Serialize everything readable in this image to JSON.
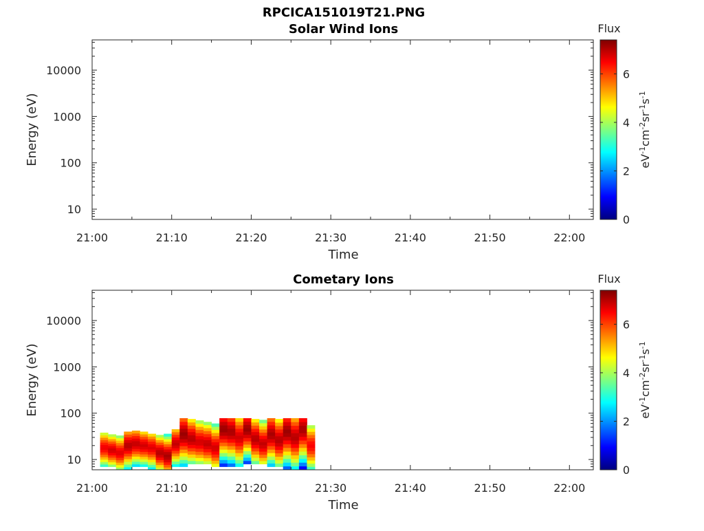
{
  "figure_title": "RPCICA151019T21.PNG",
  "colors": {
    "jet": [
      "#00007f",
      "#0000ff",
      "#007fff",
      "#00ffff",
      "#7fff7f",
      "#ffff00",
      "#ff7f00",
      "#ff0000",
      "#7f0000"
    ]
  },
  "chart_data": [
    {
      "type": "heatmap",
      "title": "Solar Wind Ions",
      "xlabel": "Time",
      "ylabel": "Energy (eV)",
      "yscale": "log",
      "xlim": [
        "21:00",
        "22:03"
      ],
      "ylim": [
        6,
        45000
      ],
      "x_ticks": [
        "21:00",
        "21:10",
        "21:20",
        "21:30",
        "21:40",
        "21:50",
        "22:00"
      ],
      "y_ticks": [
        "10",
        "100",
        "1000",
        "10000"
      ],
      "colorbar": {
        "title": "Flux",
        "label": "eV-1cm-2sr-1s-1",
        "range": [
          0,
          7.4
        ],
        "ticks": [
          "0",
          "2",
          "4",
          "6"
        ]
      },
      "data": []
    },
    {
      "type": "heatmap",
      "title": "Cometary Ions",
      "xlabel": "Time",
      "ylabel": "Energy (eV)",
      "yscale": "log",
      "xlim": [
        "21:00",
        "22:03"
      ],
      "ylim": [
        6,
        45000
      ],
      "x_ticks": [
        "21:00",
        "21:10",
        "21:20",
        "21:30",
        "21:40",
        "21:50",
        "22:00"
      ],
      "y_ticks": [
        "10",
        "100",
        "1000",
        "10000"
      ],
      "colorbar": {
        "title": "Flux",
        "label": "eV-1cm-2sr-1s-1",
        "range": [
          0,
          7.4
        ],
        "ticks": [
          "0",
          "2",
          "4",
          "6"
        ]
      },
      "data": [
        {
          "t": "21:01",
          "emin": 7,
          "emax": 38,
          "peak": 18,
          "flux": 6.6
        },
        {
          "t": "21:02",
          "emin": 7,
          "emax": 35,
          "peak": 16,
          "flux": 6.8
        },
        {
          "t": "21:03",
          "emin": 6,
          "emax": 33,
          "peak": 14,
          "flux": 6.7
        },
        {
          "t": "21:04",
          "emin": 6,
          "emax": 40,
          "peak": 20,
          "flux": 7.0
        },
        {
          "t": "21:05",
          "emin": 7,
          "emax": 42,
          "peak": 22,
          "flux": 6.9
        },
        {
          "t": "21:06",
          "emin": 7,
          "emax": 40,
          "peak": 20,
          "flux": 6.8
        },
        {
          "t": "21:07",
          "emin": 6,
          "emax": 36,
          "peak": 18,
          "flux": 6.7
        },
        {
          "t": "21:08",
          "emin": 6,
          "emax": 34,
          "peak": 14,
          "flux": 7.0
        },
        {
          "t": "21:09",
          "emin": 6,
          "emax": 36,
          "peak": 12,
          "flux": 7.1
        },
        {
          "t": "21:10",
          "emin": 7,
          "emax": 45,
          "peak": 22,
          "flux": 6.9
        },
        {
          "t": "21:11",
          "emin": 7,
          "emax": 78,
          "peak": 35,
          "flux": 7.2
        },
        {
          "t": "21:12",
          "emin": 8,
          "emax": 75,
          "peak": 28,
          "flux": 7.0
        },
        {
          "t": "21:13",
          "emin": 8,
          "emax": 70,
          "peak": 24,
          "flux": 6.8
        },
        {
          "t": "21:14",
          "emin": 8,
          "emax": 65,
          "peak": 22,
          "flux": 6.9
        },
        {
          "t": "21:15",
          "emin": 7,
          "emax": 60,
          "peak": 18,
          "flux": 6.8
        },
        {
          "t": "21:16",
          "emin": 7,
          "emax": 78,
          "peak": 45,
          "flux": 7.2
        },
        {
          "t": "21:17",
          "emin": 7,
          "emax": 78,
          "peak": 40,
          "flux": 7.1
        },
        {
          "t": "21:18",
          "emin": 7,
          "emax": 78,
          "peak": 30,
          "flux": 6.8
        },
        {
          "t": "21:19",
          "emin": 8,
          "emax": 78,
          "peak": 45,
          "flux": 7.2
        },
        {
          "t": "21:20",
          "emin": 8,
          "emax": 75,
          "peak": 28,
          "flux": 7.0
        },
        {
          "t": "21:21",
          "emin": 8,
          "emax": 72,
          "peak": 22,
          "flux": 6.9
        },
        {
          "t": "21:22",
          "emin": 7,
          "emax": 78,
          "peak": 35,
          "flux": 7.1
        },
        {
          "t": "21:23",
          "emin": 7,
          "emax": 75,
          "peak": 26,
          "flux": 7.0
        },
        {
          "t": "21:24",
          "emin": 6,
          "emax": 78,
          "peak": 40,
          "flux": 7.2
        },
        {
          "t": "21:25",
          "emin": 6,
          "emax": 78,
          "peak": 30,
          "flux": 7.0
        },
        {
          "t": "21:26",
          "emin": 6,
          "emax": 78,
          "peak": 45,
          "flux": 7.1
        },
        {
          "t": "21:27",
          "emin": 6,
          "emax": 55,
          "peak": 20,
          "flux": 6.5
        }
      ]
    }
  ]
}
